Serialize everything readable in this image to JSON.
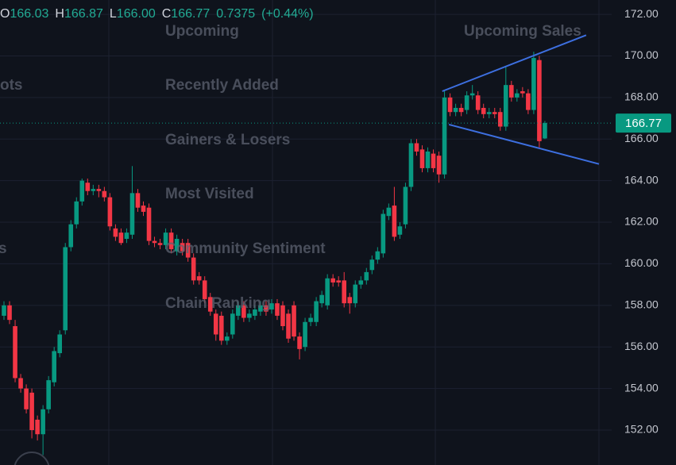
{
  "chart_data": {
    "type": "candlestick",
    "legend": {
      "items": [
        {
          "key": "O",
          "value": "166.03"
        },
        {
          "key": "H",
          "value": "166.87"
        },
        {
          "key": "L",
          "value": "166.00"
        },
        {
          "key": "C",
          "value": "166.77"
        }
      ],
      "change": "0.7375",
      "change_pct": "(+0.44%)"
    },
    "overlay_labels": [
      "Upcoming",
      "Recently Added",
      "Gainers & Losers",
      "Most Visited",
      "Community Sentiment",
      "Chain Ranking",
      "Upcoming Sales",
      "ots",
      "s"
    ],
    "up_color": "#089981",
    "down_color": "#f23645",
    "ylim": [
      150.32,
      172.69
    ],
    "yticks": [
      {
        "value": 152,
        "label": "152.00"
      },
      {
        "value": 154,
        "label": "154.00"
      },
      {
        "value": 156,
        "label": "156.00"
      },
      {
        "value": 158,
        "label": "158.00"
      },
      {
        "value": 160,
        "label": "160.00"
      },
      {
        "value": 162,
        "label": "162.00"
      },
      {
        "value": 164,
        "label": "164.00"
      },
      {
        "value": 166,
        "label": "166.00"
      },
      {
        "value": 168,
        "label": "168.00"
      },
      {
        "value": 170,
        "label": "170.00"
      },
      {
        "value": 172,
        "label": "172.00"
      }
    ],
    "grid": true,
    "last_price": {
      "value": 166.77,
      "label": "166.77"
    },
    "trendlines": [
      {
        "x": [
          78.6,
          104.4
        ],
        "y": [
          168.3,
          171.0
        ],
        "color": "#3d6fe0"
      },
      {
        "x": [
          79.8,
          106.7
        ],
        "y": [
          166.7,
          164.8
        ],
        "color": "#3d6fe0"
      }
    ],
    "ohlc": [
      [
        157.5,
        158.2,
        157.3,
        158
      ],
      [
        158,
        158.2,
        157.1,
        157.3
      ],
      [
        157,
        157.3,
        154.3,
        154.5
      ],
      [
        154.5,
        154.7,
        153.8,
        154
      ],
      [
        154,
        154.2,
        152.8,
        153
      ],
      [
        153.8,
        154,
        151.6,
        152
      ],
      [
        152.5,
        152.7,
        151.5,
        151.8
      ],
      [
        151.8,
        153.2,
        150.8,
        153
      ],
      [
        153,
        154.6,
        152.8,
        154.4
      ],
      [
        154.3,
        156,
        154.1,
        155.8
      ],
      [
        155.7,
        156.8,
        155.5,
        156.6
      ],
      [
        156.8,
        161,
        156.6,
        160.8
      ],
      [
        160.8,
        162.1,
        160.6,
        161.9
      ],
      [
        161.9,
        163.2,
        161.7,
        163
      ],
      [
        163,
        164.1,
        162.8,
        164
      ],
      [
        163.9,
        164.1,
        163.3,
        163.5
      ],
      [
        163.5,
        163.8,
        163.3,
        163.6
      ],
      [
        163.6,
        163.8,
        163.2,
        163.5
      ],
      [
        163.5,
        163.7,
        163,
        163.2
      ],
      [
        163.2,
        163.4,
        161.6,
        161.8
      ],
      [
        161.7,
        161.9,
        161.1,
        161.3
      ],
      [
        161.5,
        161.7,
        160.9,
        161
      ],
      [
        161.2,
        161.7,
        161,
        161.5
      ],
      [
        161.4,
        164.7,
        161.2,
        163.4
      ],
      [
        163.4,
        163.6,
        162.5,
        162.7
      ],
      [
        162.8,
        163,
        162.3,
        162.5
      ],
      [
        162.7,
        162.9,
        160.9,
        161.1
      ],
      [
        161.1,
        161.3,
        160.8,
        161
      ],
      [
        161,
        161.2,
        160.7,
        160.9
      ],
      [
        160.9,
        161.7,
        160.7,
        161.5
      ],
      [
        161.5,
        161.7,
        160.5,
        160.7
      ],
      [
        160.6,
        161.4,
        160.4,
        161.2
      ],
      [
        161,
        161.2,
        160.4,
        160.6
      ],
      [
        161,
        161.2,
        160.1,
        160.3
      ],
      [
        160.3,
        160.5,
        159,
        159.2
      ],
      [
        159.4,
        159.6,
        159,
        159.2
      ],
      [
        159.2,
        159.4,
        158.1,
        158.3
      ],
      [
        158.4,
        158.6,
        157.5,
        157.7
      ],
      [
        157.6,
        157.8,
        156.3,
        156.6
      ],
      [
        157.5,
        157.7,
        156.1,
        156.3
      ],
      [
        156.3,
        156.7,
        156.1,
        156.5
      ],
      [
        156.6,
        157.8,
        156.4,
        157.6
      ],
      [
        157.5,
        158.2,
        157.3,
        158
      ],
      [
        158,
        158.2,
        157.2,
        157.4
      ],
      [
        157.4,
        157.8,
        157.2,
        157.6
      ],
      [
        157.5,
        158,
        157.3,
        157.8
      ],
      [
        157.7,
        158.2,
        157.5,
        158
      ],
      [
        158,
        158.2,
        157.5,
        157.7
      ],
      [
        157.8,
        158.3,
        157.6,
        158.1
      ],
      [
        158.1,
        158.3,
        157.3,
        157.5
      ],
      [
        158,
        158.2,
        156.8,
        157
      ],
      [
        157.6,
        157.8,
        156.2,
        156.4
      ],
      [
        158,
        158.2,
        156.3,
        156.5
      ],
      [
        156.5,
        156.7,
        155.4,
        155.9
      ],
      [
        156,
        157.4,
        155.8,
        157.2
      ],
      [
        157.2,
        157.6,
        157,
        157.4
      ],
      [
        157.2,
        158.4,
        157,
        158.2
      ],
      [
        158.1,
        158.7,
        157.9,
        158.5
      ],
      [
        158,
        159.5,
        157.8,
        159.3
      ],
      [
        159.3,
        159.5,
        158.9,
        159.1
      ],
      [
        159.2,
        159.4,
        158.9,
        159.1
      ],
      [
        159.2,
        159.6,
        157.9,
        158.1
      ],
      [
        158.4,
        158.6,
        157.6,
        158.1
      ],
      [
        158.1,
        159.2,
        157.9,
        159
      ],
      [
        159,
        159.4,
        158.8,
        159.2
      ],
      [
        159.2,
        159.8,
        159,
        159.6
      ],
      [
        159.7,
        160.4,
        159.5,
        160.2
      ],
      [
        160.2,
        160.8,
        160,
        160.6
      ],
      [
        160.5,
        162.6,
        160.3,
        162.4
      ],
      [
        162.3,
        162.9,
        162.1,
        162.7
      ],
      [
        162.8,
        163.7,
        161.1,
        161.3
      ],
      [
        161.4,
        162,
        161.2,
        161.8
      ],
      [
        161.9,
        163.9,
        161.7,
        163.7
      ],
      [
        163.7,
        166,
        163.5,
        165.8
      ],
      [
        165.8,
        166,
        165.2,
        165.4
      ],
      [
        165.5,
        165.7,
        164.4,
        164.6
      ],
      [
        164.6,
        165.6,
        164.4,
        165.4
      ],
      [
        165.3,
        165.5,
        164.4,
        164.6
      ],
      [
        165.2,
        165.4,
        163.9,
        164.3
      ],
      [
        164.3,
        168.3,
        164.1,
        168
      ],
      [
        168,
        168.2,
        167.1,
        167.3
      ],
      [
        167.3,
        167.7,
        167.1,
        167.5
      ],
      [
        167.5,
        167.7,
        167.1,
        167.3
      ],
      [
        167.4,
        168.3,
        167.2,
        168.1
      ],
      [
        168.1,
        168.6,
        167.9,
        168.2
      ],
      [
        168.1,
        168.3,
        167.2,
        167.4
      ],
      [
        167.5,
        167.7,
        167,
        167.2
      ],
      [
        167.2,
        167.5,
        167,
        167.3
      ],
      [
        167.3,
        167.5,
        167,
        167.2
      ],
      [
        167.3,
        167.5,
        166.4,
        166.6
      ],
      [
        166.6,
        169.5,
        166.4,
        168.6
      ],
      [
        168.6,
        168.8,
        167.8,
        168
      ],
      [
        168,
        168.4,
        167.8,
        168.2
      ],
      [
        168.3,
        168.5,
        168,
        168.2
      ],
      [
        168.2,
        168.4,
        167.2,
        167.4
      ],
      [
        167.4,
        170.2,
        167.2,
        169.9
      ],
      [
        169.8,
        170,
        165.6,
        165.9
      ],
      [
        166.03,
        166.87,
        166.0,
        166.77
      ]
    ]
  }
}
